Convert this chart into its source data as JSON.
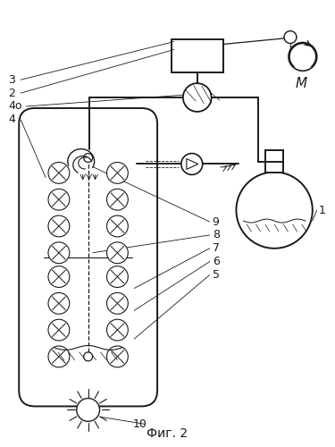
{
  "title": "Фиг. 2",
  "bg_color": "#ffffff",
  "line_color": "#1a1a1a",
  "lw": 1.0,
  "lw2": 1.4
}
